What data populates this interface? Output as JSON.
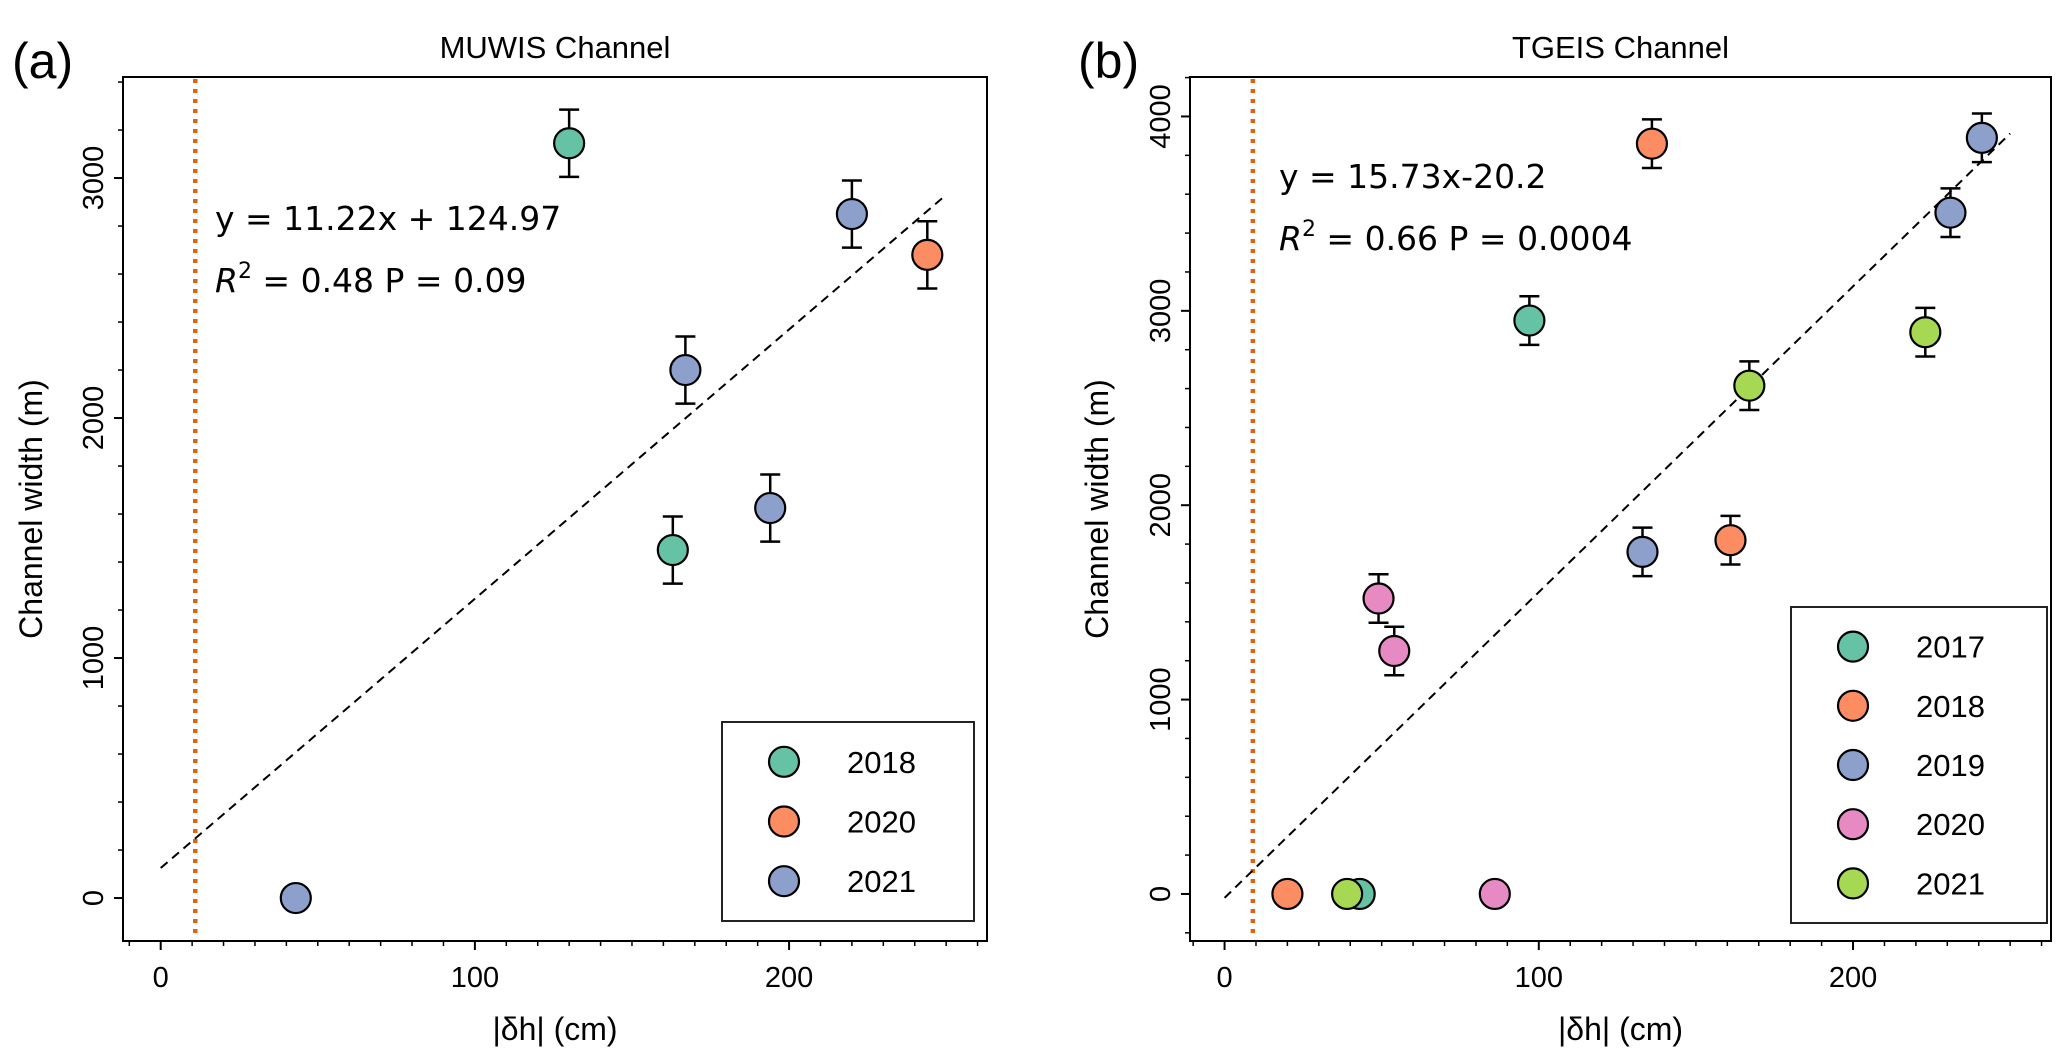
{
  "chart_data": [
    {
      "type": "scatter",
      "panel_label": "(a)",
      "title": "MUWIS Channel",
      "xlabel": "|δh| (cm)",
      "ylabel": "Channel width (m)",
      "xlim": [
        -12,
        263
      ],
      "ylim": [
        -179,
        3421
      ],
      "xticks": [
        0,
        100,
        200
      ],
      "yticks": [
        0,
        1000,
        2000,
        3000
      ],
      "grid": false,
      "legend_position": "bottom-right",
      "threshold_line_x": 11,
      "threshold_color": "#e3620f",
      "fit": {
        "slope": 11.22,
        "intercept": 124.97,
        "x_range": [
          0,
          250
        ]
      },
      "annotation": {
        "line1": "y = 11.22x + 124.97",
        "r2_label": "R",
        "r2_sup": "2",
        "line2_rest": " = 0.48  P = 0.09"
      },
      "series": [
        {
          "name": "2018",
          "color": "#66c2a5",
          "points": [
            {
              "x": 130,
              "y": 3145,
              "yerr": 140
            },
            {
              "x": 163,
              "y": 1450,
              "yerr": 140
            }
          ]
        },
        {
          "name": "2020",
          "color": "#fc8d62",
          "points": [
            {
              "x": 244,
              "y": 2680,
              "yerr": 140
            }
          ]
        },
        {
          "name": "2021",
          "color": "#8da0cb",
          "points": [
            {
              "x": 43,
              "y": 0,
              "yerr": 0
            },
            {
              "x": 167,
              "y": 2200,
              "yerr": 140
            },
            {
              "x": 194,
              "y": 1625,
              "yerr": 140
            },
            {
              "x": 220,
              "y": 2850,
              "yerr": 140
            }
          ]
        }
      ]
    },
    {
      "type": "scatter",
      "panel_label": "(b)",
      "title": "TGEIS Channel",
      "xlabel": "|δh| (cm)",
      "ylabel": "Channel width (m)",
      "xlim": [
        -11,
        263
      ],
      "ylim": [
        -242,
        4203
      ],
      "xticks": [
        0,
        100,
        200
      ],
      "yticks": [
        0,
        1000,
        2000,
        3000,
        4000
      ],
      "grid": false,
      "legend_position": "bottom-right",
      "threshold_line_x": 9,
      "threshold_color": "#e3620f",
      "fit": {
        "slope": 15.73,
        "intercept": -20.2,
        "x_range": [
          0,
          250
        ]
      },
      "annotation": {
        "line1": "y = 15.73x-20.2",
        "r2_label": "R",
        "r2_sup": "2",
        "line2_rest": " = 0.66  P = 0.0004"
      },
      "series": [
        {
          "name": "2017",
          "color": "#66c2a5",
          "points": [
            {
              "x": 97,
              "y": 2950,
              "yerr": 125
            },
            {
              "x": 43,
              "y": 0,
              "yerr": 0
            }
          ]
        },
        {
          "name": "2018",
          "color": "#fc8d62",
          "points": [
            {
              "x": 136,
              "y": 3860,
              "yerr": 125
            },
            {
              "x": 161,
              "y": 1820,
              "yerr": 125
            },
            {
              "x": 20,
              "y": 0,
              "yerr": 0
            }
          ]
        },
        {
          "name": "2019",
          "color": "#8da0cb",
          "points": [
            {
              "x": 241,
              "y": 3890,
              "yerr": 125
            },
            {
              "x": 231,
              "y": 3505,
              "yerr": 125
            },
            {
              "x": 133,
              "y": 1760,
              "yerr": 125
            }
          ]
        },
        {
          "name": "2020",
          "color": "#e78ac3",
          "points": [
            {
              "x": 49,
              "y": 1520,
              "yerr": 125
            },
            {
              "x": 54,
              "y": 1250,
              "yerr": 125
            },
            {
              "x": 86,
              "y": 0,
              "yerr": 0
            }
          ]
        },
        {
          "name": "2021",
          "color": "#a6d854",
          "points": [
            {
              "x": 223,
              "y": 2890,
              "yerr": 125
            },
            {
              "x": 167,
              "y": 2615,
              "yerr": 125
            },
            {
              "x": 39,
              "y": 0,
              "yerr": 0
            }
          ]
        }
      ]
    }
  ]
}
